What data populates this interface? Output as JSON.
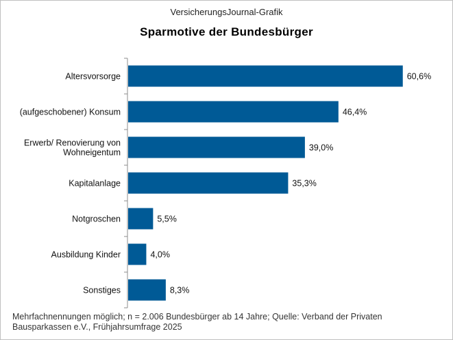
{
  "source_label": "VersicherungsJournal-Grafik",
  "chart_data": {
    "type": "bar",
    "orientation": "horizontal",
    "title": "Sparmotive der Bundesbürger",
    "categories": [
      [
        "Altersvorsorge"
      ],
      [
        "(aufgeschobener) Konsum"
      ],
      [
        "Erwerb/ Renovierung von",
        "Wohneigentum"
      ],
      [
        "Kapitalanlage"
      ],
      [
        "Notgroschen"
      ],
      [
        "Ausbildung Kinder"
      ],
      [
        "Sonstiges"
      ]
    ],
    "values": [
      60.6,
      46.4,
      39.0,
      35.3,
      5.5,
      4.0,
      8.3
    ],
    "value_labels": [
      "60,6%",
      "46,4%",
      "39,0%",
      "35,3%",
      "5,5%",
      "4,0%",
      "8,3%"
    ],
    "unit": "%",
    "xlim": [
      0,
      62
    ],
    "bar_color": "#005a96",
    "grid": false,
    "legend": "none"
  },
  "footnote": {
    "line1": "Mehrfachnennungen  möglich; n = 2.006 Bundesbürger  ab 14 Jahre; Quelle: Verband der Privaten",
    "line2": "Bausparkassen e.V., Frühjahrsumfrage  2025"
  }
}
